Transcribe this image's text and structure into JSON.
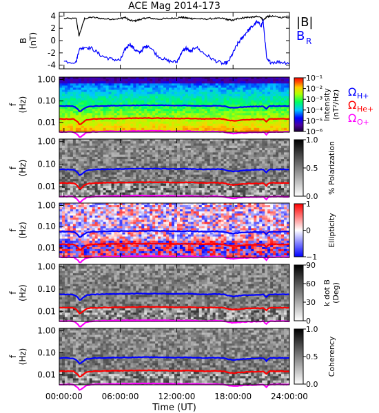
{
  "chart_data": [
    {
      "type": "line",
      "title": "ACE Mag 2014-173",
      "ylabel": "B",
      "yunit": "(nT)",
      "ylim": [
        -4.6,
        4.6
      ],
      "yticks": [
        "4",
        "2",
        "0",
        "-2",
        "-4"
      ],
      "yticks_values": [
        4,
        2,
        0,
        -2,
        -4
      ],
      "x_hours": [
        0,
        1.3,
        1.6,
        2.2,
        3,
        4,
        5,
        6,
        6.5,
        7,
        7.5,
        8,
        8.5,
        9,
        10,
        11,
        12,
        12.5,
        13,
        13.5,
        14,
        15,
        16,
        17,
        17.5,
        18,
        18.5,
        19,
        19.5,
        20,
        20.5,
        21,
        21.2,
        21.6,
        22,
        23,
        24
      ],
      "series": [
        {
          "name": "|B|",
          "color": "#000000",
          "values": [
            3.6,
            3.6,
            0.8,
            3.6,
            3.8,
            3.6,
            3.5,
            3.6,
            3.8,
            3.3,
            3.2,
            3.4,
            3.6,
            3.7,
            3.5,
            3.6,
            3.7,
            3.8,
            3.7,
            3.6,
            3.6,
            3.5,
            3.6,
            3.6,
            3.4,
            3.3,
            3.6,
            3.7,
            3.8,
            3.8,
            3.9,
            3.8,
            3.2,
            3.9,
            4.0,
            3.8,
            3.8
          ]
        },
        {
          "name": "B_R",
          "color": "#0000ff",
          "values": [
            -3.4,
            -3.5,
            -1.5,
            -1.0,
            -1.3,
            -2.5,
            -3.0,
            -3.2,
            -1.5,
            -0.5,
            -1.4,
            -2.0,
            -1.2,
            -0.8,
            -2.5,
            -3.3,
            -3.5,
            -2.0,
            -1.2,
            -1.9,
            -1.0,
            -2.2,
            -3.2,
            -3.8,
            -3.5,
            -2.0,
            -0.5,
            0.5,
            1.5,
            2.2,
            3.0,
            2.5,
            3.2,
            -3.2,
            -3.5,
            -3.5,
            -3.6
          ]
        }
      ],
      "legend": [
        "|B|",
        "B",
        "R"
      ],
      "legend_colors": [
        "#000000",
        "#0000ff"
      ],
      "legend_placement": "right"
    },
    {
      "type": "heatmap",
      "ylabel": "f",
      "yunit": "(Hz)",
      "colorbar_label": "Intensity",
      "colorbar_unit": "(nT²/Hz)",
      "colorbar_ticks": [
        "10⁻¹",
        "10⁻²",
        "10⁻³",
        "10⁻⁴",
        "10⁻⁵",
        "10⁻⁶"
      ],
      "colorbar_scale": "rainbow-log",
      "legend": [
        {
          "symbol": "Ω",
          "sub": "H+",
          "color": "#0000ff"
        },
        {
          "symbol": "Ω",
          "sub": "He+",
          "color": "#ff0000"
        },
        {
          "symbol": "Ω",
          "sub": "O+",
          "color": "#ff00ff"
        }
      ]
    },
    {
      "type": "heatmap",
      "ylabel": "f",
      "yunit": "(Hz)",
      "colorbar_label": "% Polarization",
      "colorbar_ticks": [
        "1.0",
        "0.5",
        "0.0"
      ],
      "colorbar_scale": "gray"
    },
    {
      "type": "heatmap",
      "ylabel": "f",
      "yunit": "(Hz)",
      "colorbar_label": "Ellipticity",
      "colorbar_ticks": [
        "1",
        "0",
        "−1"
      ],
      "colorbar_scale": "blue-white-red"
    },
    {
      "type": "heatmap",
      "ylabel": "f",
      "yunit": "(Hz)",
      "colorbar_label": "k dot B",
      "colorbar_unit": "(Deg)",
      "colorbar_ticks": [
        "90",
        "60",
        "30",
        "0"
      ],
      "colorbar_scale": "gray"
    },
    {
      "type": "heatmap",
      "ylabel": "f",
      "yunit": "(Hz)",
      "colorbar_label": "Coherency",
      "colorbar_ticks": [
        "1.0",
        "0.5",
        "0.0"
      ],
      "colorbar_scale": "gray"
    }
  ],
  "spectra": {
    "yticks": [
      "1.00",
      "0.10",
      "0.01"
    ],
    "yticks_values": [
      1.0,
      0.1,
      0.01
    ],
    "ylim": [
      0.0035,
      1.3
    ],
    "yscale": "log",
    "gyro_lines": {
      "x_hours": [
        0,
        1,
        1.4,
        1.7,
        2,
        2.4,
        3,
        5,
        7,
        9,
        11,
        12,
        13,
        14,
        15,
        16,
        17,
        17.4,
        18,
        19,
        20,
        21,
        21.3,
        21.5,
        21.8,
        22,
        23,
        24
      ],
      "H+": [
        0.058,
        0.057,
        0.045,
        0.03,
        0.04,
        0.052,
        0.057,
        0.06,
        0.062,
        0.063,
        0.062,
        0.06,
        0.062,
        0.06,
        0.058,
        0.06,
        0.058,
        0.052,
        0.047,
        0.052,
        0.055,
        0.056,
        0.057,
        0.04,
        0.056,
        0.058,
        0.058,
        0.058
      ],
      "He+": [
        0.0145,
        0.0143,
        0.0113,
        0.0075,
        0.01,
        0.013,
        0.0143,
        0.015,
        0.0155,
        0.0158,
        0.0155,
        0.015,
        0.0155,
        0.015,
        0.0145,
        0.015,
        0.0145,
        0.013,
        0.0118,
        0.013,
        0.0138,
        0.014,
        0.0143,
        0.01,
        0.014,
        0.0145,
        0.0145,
        0.0145
      ],
      "O+": [
        0.0036,
        0.0036,
        0.0028,
        0.0019,
        0.0025,
        0.0033,
        0.0036,
        0.0038,
        0.0039,
        0.004,
        0.0039,
        0.0038,
        0.0039,
        0.0038,
        0.0036,
        0.0038,
        0.0036,
        0.0033,
        0.003,
        0.0033,
        0.0034,
        0.0035,
        0.0036,
        0.0025,
        0.0035,
        0.0036,
        0.0036,
        0.0036
      ]
    },
    "gyro_colors": {
      "H+": "#0000ff",
      "He+": "#ff0000",
      "O+": "#ff00ff"
    }
  },
  "x_axis": {
    "label": "Time (UT)",
    "ticks": [
      "00:00:00",
      "06:00:00",
      "12:00:00",
      "18:00:00",
      "24:00:00"
    ],
    "tick_hours": [
      0,
      6,
      12,
      18,
      24
    ],
    "xlim_hours": [
      -0.5,
      24
    ]
  }
}
